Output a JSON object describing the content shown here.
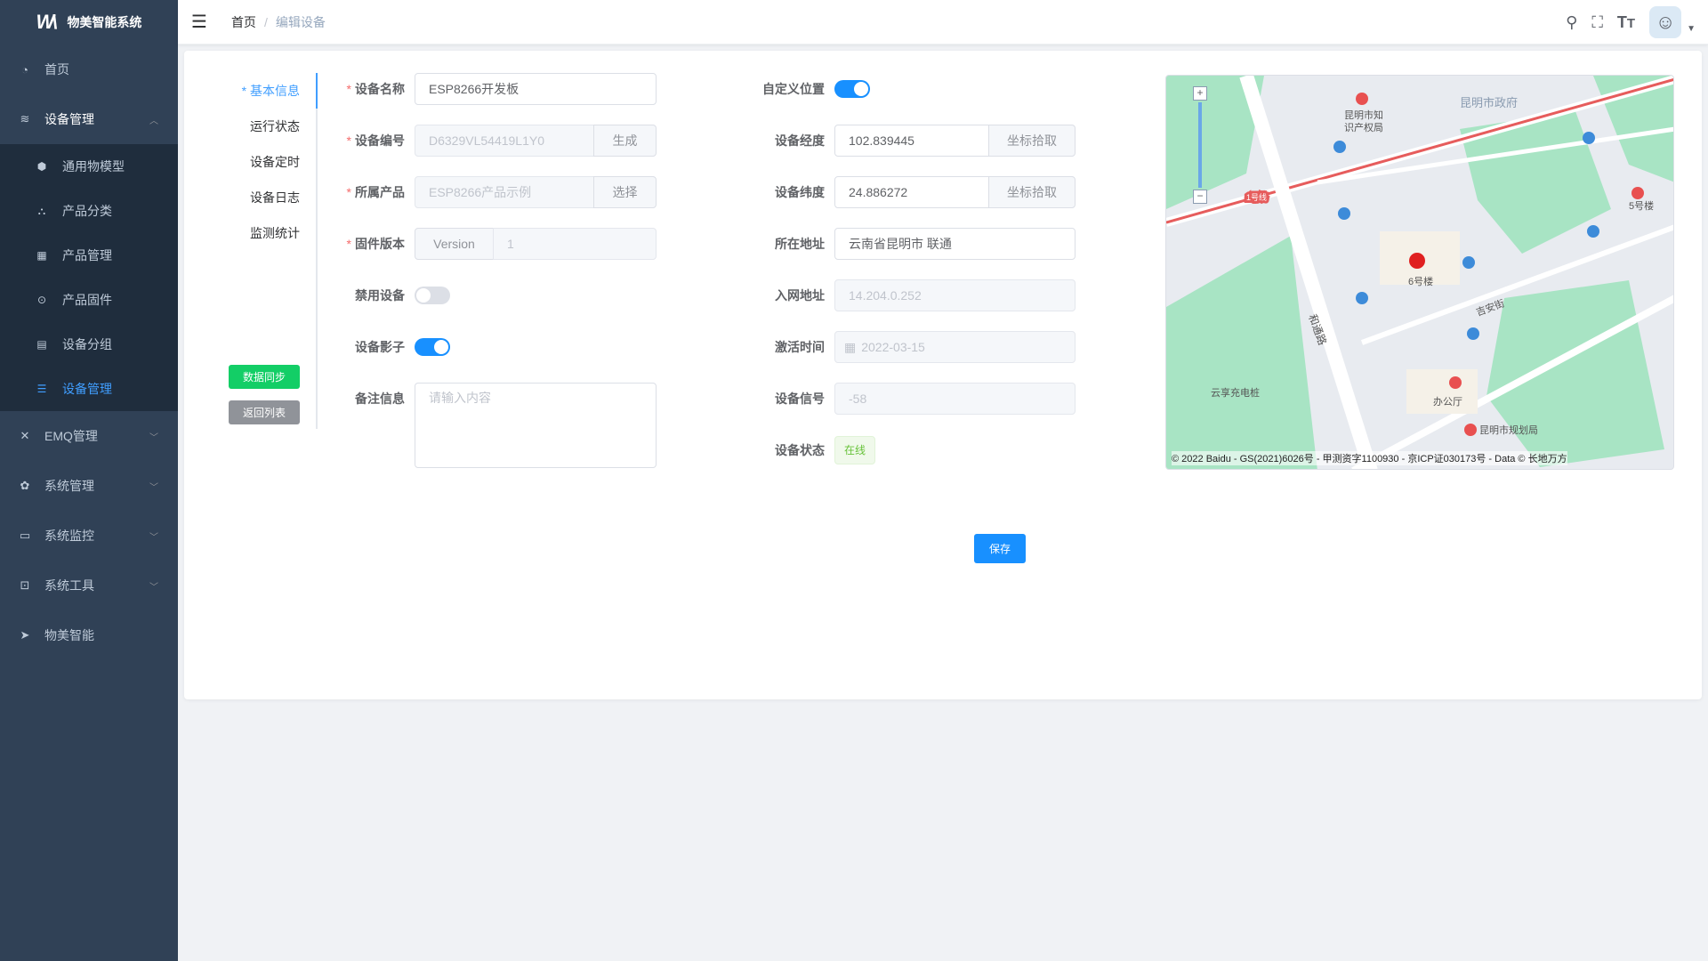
{
  "app": {
    "title": "物美智能系统"
  },
  "sidebar": {
    "items": [
      {
        "label": "首页",
        "icon": "dashboard-icon"
      },
      {
        "label": "设备管理",
        "icon": "device-icon",
        "expanded": true
      },
      {
        "label": "EMQ管理",
        "icon": "emq-icon"
      },
      {
        "label": "系统管理",
        "icon": "gear-icon"
      },
      {
        "label": "系统监控",
        "icon": "monitor-icon"
      },
      {
        "label": "系统工具",
        "icon": "toolbox-icon"
      },
      {
        "label": "物美智能",
        "icon": "send-icon"
      }
    ],
    "sub_items": [
      {
        "label": "通用物模型",
        "icon": "cube-icon"
      },
      {
        "label": "产品分类",
        "icon": "tree-icon"
      },
      {
        "label": "产品管理",
        "icon": "grid-icon"
      },
      {
        "label": "产品固件",
        "icon": "firmware-icon"
      },
      {
        "label": "设备分组",
        "icon": "group-icon"
      },
      {
        "label": "设备管理",
        "icon": "list-icon",
        "active": true
      }
    ]
  },
  "header": {
    "breadcrumb": [
      "首页",
      "编辑设备"
    ],
    "separator": "/"
  },
  "tabs": [
    {
      "label": "* 基本信息",
      "active": true
    },
    {
      "label": "运行状态"
    },
    {
      "label": "设备定时"
    },
    {
      "label": "设备日志"
    },
    {
      "label": "监测统计"
    }
  ],
  "side_buttons": {
    "sync": "数据同步",
    "back": "返回列表"
  },
  "form": {
    "device_name": {
      "label": "设备名称",
      "required": true,
      "value": "ESP8266开发板"
    },
    "device_code": {
      "label": "设备编号",
      "required": true,
      "value": "D6329VL54419L1Y0",
      "button": "生成"
    },
    "product": {
      "label": "所属产品",
      "required": true,
      "value": "ESP8266产品示例",
      "button": "选择"
    },
    "firmware": {
      "label": "固件版本",
      "required": true,
      "prefix": "Version",
      "value": "1"
    },
    "disable": {
      "label": "禁用设备",
      "on": false
    },
    "shadow": {
      "label": "设备影子",
      "on": true
    },
    "remark": {
      "label": "备注信息",
      "placeholder": "请输入内容",
      "value": ""
    },
    "custom_location": {
      "label": "自定义位置",
      "on": true
    },
    "longitude": {
      "label": "设备经度",
      "value": "102.839445",
      "button": "坐标拾取"
    },
    "latitude": {
      "label": "设备纬度",
      "value": "24.886272",
      "button": "坐标拾取"
    },
    "address": {
      "label": "所在地址",
      "value": "云南省昆明市 联通"
    },
    "ip": {
      "label": "入网地址",
      "value": "14.204.0.252"
    },
    "active_time": {
      "label": "激活时间",
      "value": "2022-03-15"
    },
    "signal": {
      "label": "设备信号",
      "value": "-58"
    },
    "status": {
      "label": "设备状态",
      "value": "在线"
    }
  },
  "save_label": "保存",
  "map": {
    "labels": [
      "昆明市政府",
      "昆明市知识产权局",
      "5号楼",
      "6号楼",
      "吉安街",
      "和通路",
      "云享充电桩",
      "办公厅",
      "昆明市规划局",
      "1号线"
    ],
    "copyright": "© 2022 Baidu - GS(2021)6026号 - 甲测资字1100930 - 京ICP证030173号 - Data © 长地万方"
  },
  "colors": {
    "primary": "#1890ff",
    "sidebar": "#304156",
    "success": "#67c23a",
    "sync_button": "#13ce66",
    "back_button": "#909399"
  }
}
